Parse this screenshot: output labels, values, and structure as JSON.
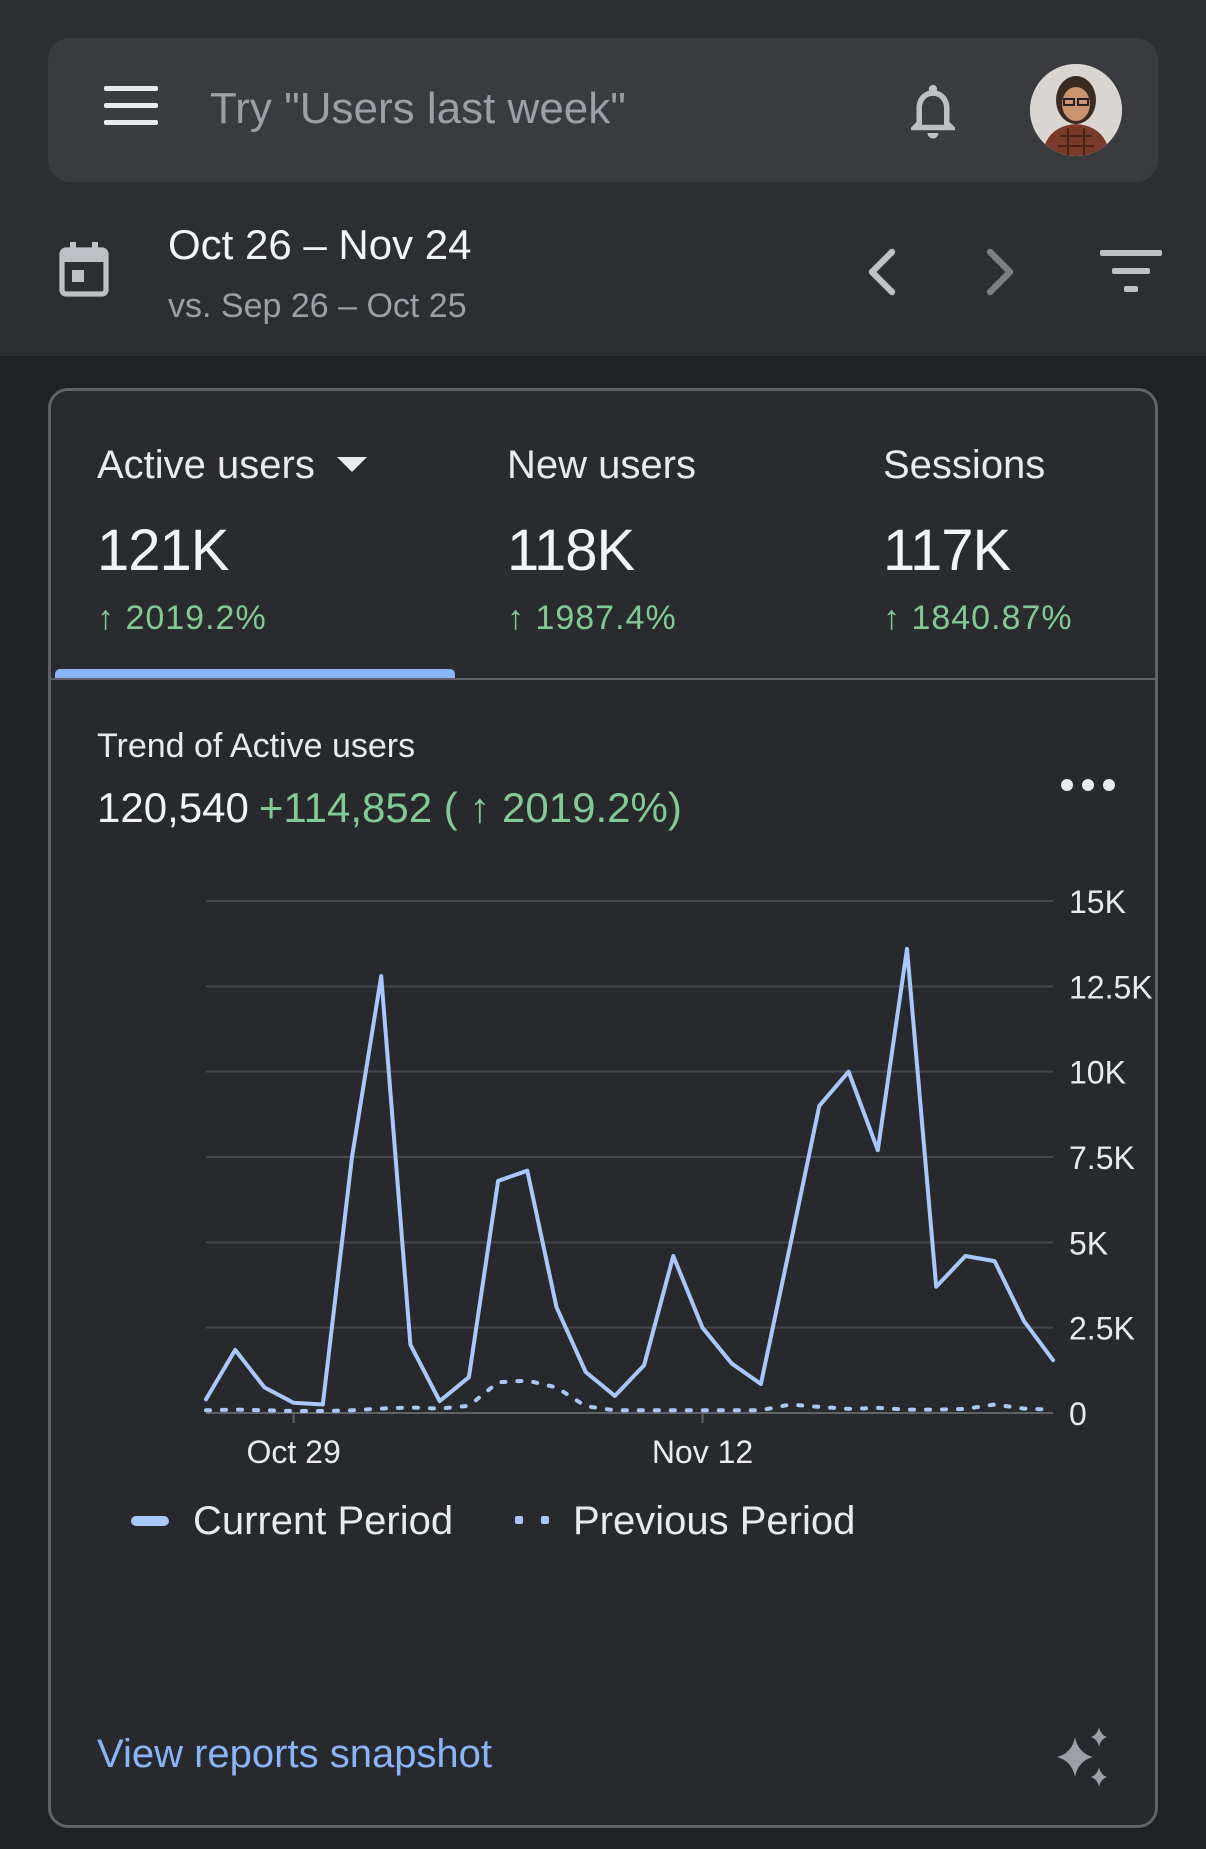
{
  "search": {
    "placeholder": "Try \"Users last week\""
  },
  "icons": {
    "menu": "menu-icon",
    "bell": "bell-icon",
    "avatar": "avatar",
    "calendar": "calendar-icon",
    "prev": "chevron-left-icon",
    "next": "chevron-right-icon",
    "filter": "filter-icon",
    "more": "more-horiz-icon",
    "sparkle": "sparkle-icon"
  },
  "date_range": {
    "current": "Oct 26 – Nov 24",
    "compare": "vs. Sep 26 – Oct 25"
  },
  "metrics": [
    {
      "label": "Active users",
      "value": "121K",
      "change": "↑ 2019.2%",
      "selected": true
    },
    {
      "label": "New users",
      "value": "118K",
      "change": "↑ 1987.4%",
      "selected": false
    },
    {
      "label": "Sessions",
      "value": "117K",
      "change": "↑ 1840.87%",
      "selected": false
    }
  ],
  "trend": {
    "title": "Trend of Active users",
    "value": "120,540",
    "delta": "+114,852 ( ↑ 2019.2%)"
  },
  "colors": {
    "accent": "#8ab4f8",
    "series": "#a8c7fa",
    "positive": "#81c995",
    "background": "#202124"
  },
  "chart_data": {
    "type": "line",
    "title": "",
    "xlabel": "",
    "ylabel": "",
    "x": [
      "Oct 26",
      "Oct 27",
      "Oct 28",
      "Oct 29",
      "Oct 30",
      "Oct 31",
      "Nov 1",
      "Nov 2",
      "Nov 3",
      "Nov 4",
      "Nov 5",
      "Nov 6",
      "Nov 7",
      "Nov 8",
      "Nov 9",
      "Nov 10",
      "Nov 11",
      "Nov 12",
      "Nov 13",
      "Nov 14",
      "Nov 15",
      "Nov 16",
      "Nov 17",
      "Nov 18",
      "Nov 19",
      "Nov 20",
      "Nov 21",
      "Nov 22",
      "Nov 23",
      "Nov 24"
    ],
    "x_tick_labels": [
      {
        "index": 3,
        "label": "Oct 29"
      },
      {
        "index": 17,
        "label": "Nov 12"
      }
    ],
    "y_tick_labels": [
      "0",
      "2.5K",
      "5K",
      "7.5K",
      "10K",
      "12.5K",
      "15K"
    ],
    "y_tick_values": [
      0,
      2500,
      5000,
      7500,
      10000,
      12500,
      15000
    ],
    "ylim": [
      0,
      15000
    ],
    "y_axis_side": "right",
    "grid": true,
    "legend_position": "bottom-left",
    "series": [
      {
        "name": "Current Period",
        "style": "solid",
        "values": [
          400,
          1850,
          750,
          300,
          250,
          7500,
          12800,
          2000,
          350,
          1050,
          6800,
          7100,
          3100,
          1200,
          500,
          1400,
          4600,
          2500,
          1450,
          850,
          4900,
          9000,
          10000,
          7700,
          13600,
          3700,
          4600,
          4450,
          2700,
          1550
        ]
      },
      {
        "name": "Previous Period",
        "style": "dotted",
        "values": [
          80,
          100,
          80,
          60,
          60,
          80,
          130,
          160,
          130,
          210,
          900,
          950,
          750,
          200,
          80,
          80,
          80,
          80,
          80,
          80,
          250,
          180,
          120,
          150,
          100,
          100,
          120,
          250,
          130,
          100
        ]
      }
    ]
  },
  "footer": {
    "link": "View reports snapshot"
  }
}
